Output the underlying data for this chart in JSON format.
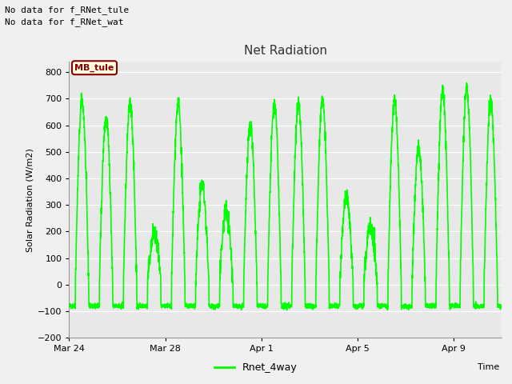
{
  "title": "Net Radiation",
  "xlabel": "Time",
  "ylabel": "Solar Radiation (W/m2)",
  "ylim": [
    -200,
    840
  ],
  "yticks": [
    -200,
    -100,
    0,
    100,
    200,
    300,
    400,
    500,
    600,
    700,
    800
  ],
  "line_color": "#00FF00",
  "line_width": 1.2,
  "fig_bg_color": "#F0F0F0",
  "plot_bg_color": "#E8E8E8",
  "grid_color": "#FFFFFF",
  "annotations": [
    "No data for f_RNet_tule",
    "No data for f_RNet_wat"
  ],
  "legend_label": "Rnet_4way",
  "mb_tule_label": "MB_tule",
  "xtick_labels": [
    "Mar 24",
    "Mar 28",
    "Apr 1",
    "Apr 5",
    "Apr 9"
  ],
  "days": 18,
  "seed": 42
}
